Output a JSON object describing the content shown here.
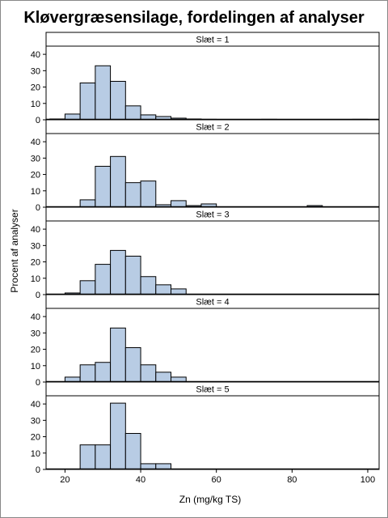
{
  "chart_data": {
    "type": "bar",
    "title": "Kløvergræsensilage, fordelingen af analyser",
    "xlabel": "Zn (mg/kg TS)",
    "ylabel": "Procent af analyser",
    "xlim": [
      15,
      103
    ],
    "ylim": [
      0,
      45
    ],
    "x_ticks": [
      20,
      40,
      60,
      80,
      100
    ],
    "y_ticks": [
      0,
      10,
      20,
      30,
      40
    ],
    "bin_width": 4,
    "bar_color": "#b8cce4",
    "bar_edge_color": "#000000",
    "panels": [
      {
        "label": "Slæt = 1",
        "bins": [
          {
            "x": 16,
            "y": 0.5
          },
          {
            "x": 20,
            "y": 3.5
          },
          {
            "x": 24,
            "y": 22.5
          },
          {
            "x": 28,
            "y": 33
          },
          {
            "x": 32,
            "y": 23.5
          },
          {
            "x": 36,
            "y": 8.5
          },
          {
            "x": 40,
            "y": 3
          },
          {
            "x": 44,
            "y": 2
          },
          {
            "x": 48,
            "y": 1
          },
          {
            "x": 52,
            "y": 0.5
          },
          {
            "x": 56,
            "y": 0.3
          },
          {
            "x": 72,
            "y": 0.3
          },
          {
            "x": 96,
            "y": 0.3
          }
        ]
      },
      {
        "label": "Slæt = 2",
        "bins": [
          {
            "x": 24,
            "y": 4.5
          },
          {
            "x": 28,
            "y": 25
          },
          {
            "x": 32,
            "y": 31
          },
          {
            "x": 36,
            "y": 15
          },
          {
            "x": 40,
            "y": 16
          },
          {
            "x": 44,
            "y": 1.5
          },
          {
            "x": 48,
            "y": 4
          },
          {
            "x": 52,
            "y": 1
          },
          {
            "x": 56,
            "y": 2
          },
          {
            "x": 84,
            "y": 1
          }
        ]
      },
      {
        "label": "Slæt = 3",
        "bins": [
          {
            "x": 20,
            "y": 1
          },
          {
            "x": 24,
            "y": 8.5
          },
          {
            "x": 28,
            "y": 18.5
          },
          {
            "x": 32,
            "y": 27
          },
          {
            "x": 36,
            "y": 23.5
          },
          {
            "x": 40,
            "y": 11
          },
          {
            "x": 44,
            "y": 6
          },
          {
            "x": 48,
            "y": 3.5
          }
        ]
      },
      {
        "label": "Slæt = 4",
        "bins": [
          {
            "x": 20,
            "y": 3
          },
          {
            "x": 24,
            "y": 10.5
          },
          {
            "x": 28,
            "y": 12
          },
          {
            "x": 32,
            "y": 33
          },
          {
            "x": 36,
            "y": 21
          },
          {
            "x": 40,
            "y": 10.5
          },
          {
            "x": 44,
            "y": 6
          },
          {
            "x": 48,
            "y": 3
          }
        ]
      },
      {
        "label": "Slæt = 5",
        "bins": [
          {
            "x": 24,
            "y": 15
          },
          {
            "x": 28,
            "y": 15
          },
          {
            "x": 32,
            "y": 40.5
          },
          {
            "x": 36,
            "y": 22
          },
          {
            "x": 40,
            "y": 3.5
          },
          {
            "x": 44,
            "y": 3.5
          }
        ]
      }
    ]
  }
}
